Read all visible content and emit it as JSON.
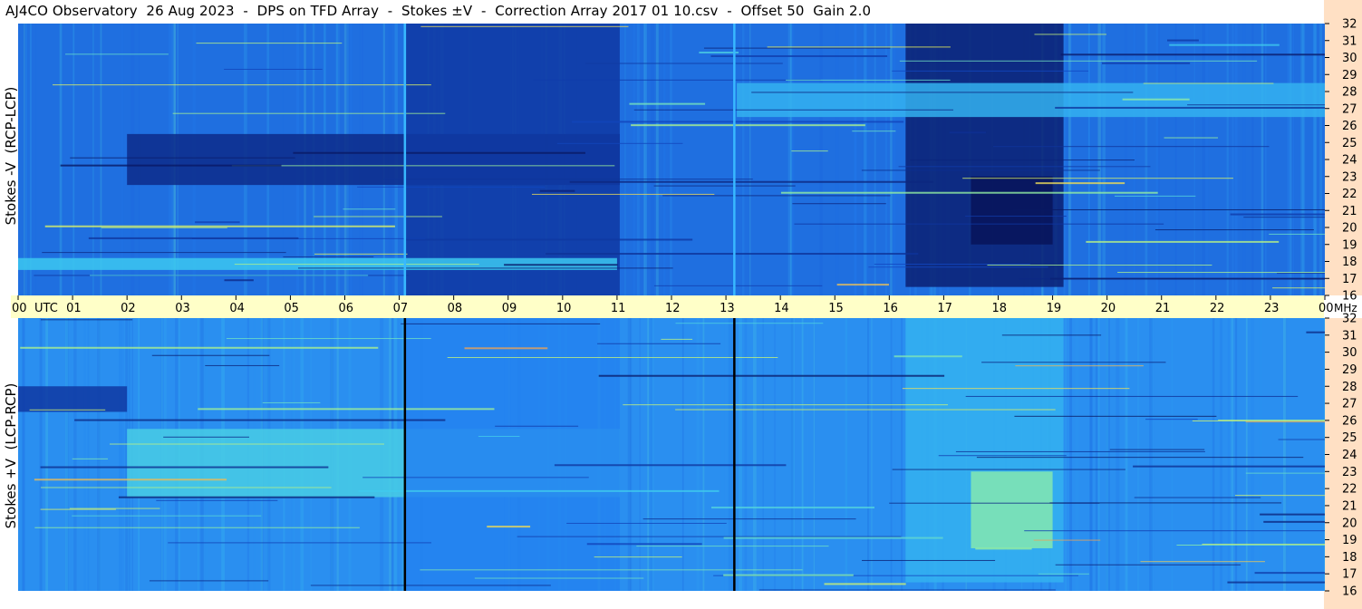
{
  "title": "AJ4CO Observatory  26 Aug 2023  -  DPS on TFD Array  -  Stokes ±V  -  Correction Array 2017 01 10.csv  -  Offset 50  Gain 2.0",
  "chart_data": [
    {
      "type": "heatmap",
      "name": "Stokes -V (RCP-LCP)",
      "ylabel": "Stokes -V  (RCP-LCP)",
      "x_range_utc_hours": [
        0,
        24
      ],
      "y_range_mhz": [
        16,
        32
      ],
      "y_ticks": [
        "32",
        "31",
        "30",
        "29",
        "28",
        "27",
        "26",
        "25",
        "24",
        "23",
        "22",
        "21",
        "20",
        "19",
        "18",
        "17",
        "16"
      ],
      "colormap": "dark navy (low) - blue - cyan - yellow - red (high)",
      "background_color": "#1f6fe0",
      "features": [
        {
          "utc_start": 2,
          "utc_end": 11.05,
          "mhz_low": 22.5,
          "mhz_high": 25.5,
          "level": 0.1
        },
        {
          "utc_start": 7.1,
          "utc_end": 11.05,
          "mhz_low": 16,
          "mhz_high": 32,
          "level": 0.15
        },
        {
          "utc_start": 16.3,
          "utc_end": 19.2,
          "mhz_low": 16.5,
          "mhz_high": 32,
          "level": 0.05
        },
        {
          "utc_start": 17.5,
          "utc_end": 19,
          "mhz_low": 19,
          "mhz_high": 23,
          "level": 0.0
        },
        {
          "utc_start": 13.2,
          "utc_end": 24,
          "mhz_low": 26.5,
          "mhz_high": 28.5,
          "level": 0.55
        },
        {
          "utc_start": 0,
          "utc_end": 11,
          "mhz_low": 17.5,
          "mhz_high": 18.2,
          "level": 0.6
        }
      ],
      "vertical_lines_utc": [
        7.1,
        13.15
      ],
      "vertical_line_color": "#38b8ff"
    },
    {
      "type": "heatmap",
      "name": "Stokes +V (LCP-RCP)",
      "ylabel": "Stokes +V  (LCP-RCP)",
      "x_range_utc_hours": [
        0,
        24
      ],
      "y_range_mhz": [
        16,
        32
      ],
      "y_ticks": [
        "32",
        "31",
        "30",
        "29",
        "28",
        "27",
        "26",
        "25",
        "24",
        "23",
        "22",
        "21",
        "20",
        "19",
        "18",
        "17",
        "16"
      ],
      "colormap": "dark navy (low) - blue - cyan - yellow - red (high)",
      "background_color": "#2a8ff0",
      "features": [
        {
          "utc_start": 2,
          "utc_end": 11.05,
          "mhz_low": 21.5,
          "mhz_high": 25.5,
          "level": 0.62
        },
        {
          "utc_start": 7.1,
          "utc_end": 11.05,
          "mhz_low": 16,
          "mhz_high": 32,
          "level": 0.45
        },
        {
          "utc_start": 16.3,
          "utc_end": 19.2,
          "mhz_low": 16.5,
          "mhz_high": 32,
          "level": 0.55
        },
        {
          "utc_start": 17.5,
          "utc_end": 19,
          "mhz_low": 18.5,
          "mhz_high": 23,
          "level": 0.72
        },
        {
          "utc_start": 0,
          "utc_end": 2,
          "mhz_low": 26.5,
          "mhz_high": 28,
          "level": 0.15
        }
      ],
      "vertical_lines_utc": [
        7.1,
        13.15
      ],
      "vertical_line_color": "#000000"
    }
  ],
  "x_axis": {
    "labels": [
      "00",
      "01",
      "02",
      "03",
      "04",
      "05",
      "06",
      "07",
      "08",
      "09",
      "10",
      "11",
      "12",
      "13",
      "14",
      "15",
      "16",
      "17",
      "18",
      "19",
      "20",
      "21",
      "22",
      "23",
      "00"
    ],
    "utc_label": "UTC",
    "unit_label": "MHz"
  },
  "colors": {
    "axis_strip": "#ffffc8",
    "mhz_strip": "#ffe0c4",
    "navy": "#0b1a6e",
    "blue": "#1f6fe0",
    "cyan": "#3fd0f0",
    "yellow": "#e8f060",
    "red": "#e04060"
  }
}
